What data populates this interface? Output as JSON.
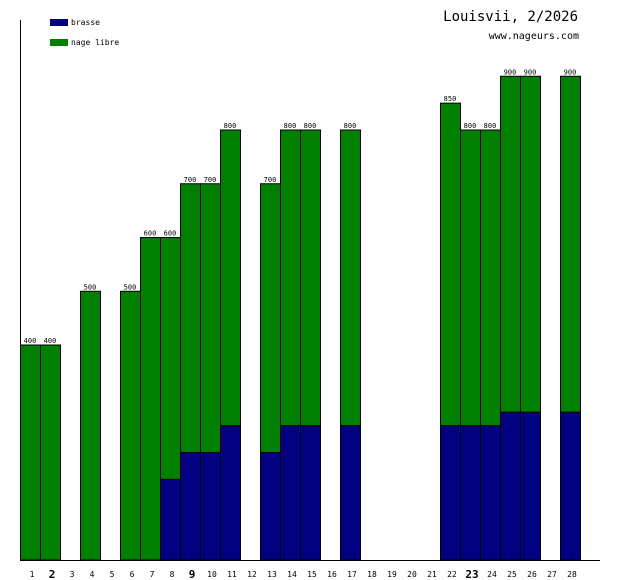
{
  "chart_data": {
    "type": "bar",
    "stacked": true,
    "title": "Louisvii, 2/2026",
    "subtitle": "www.nageurs.com",
    "xlabel": "",
    "ylabel": "",
    "ylim": [
      0,
      1000
    ],
    "legend_placement": "top-left",
    "categories": [
      "1",
      "2",
      "3",
      "4",
      "5",
      "6",
      "7",
      "8",
      "9",
      "10",
      "11",
      "12",
      "13",
      "14",
      "15",
      "16",
      "17",
      "18",
      "19",
      "20",
      "21",
      "22",
      "23",
      "24",
      "25",
      "26",
      "27",
      "28"
    ],
    "bold_categories": [
      "2",
      "9",
      "23"
    ],
    "series": [
      {
        "name": "brasse",
        "color": "#000080",
        "values": [
          0,
          0,
          0,
          0,
          0,
          0,
          0,
          150,
          200,
          200,
          250,
          0,
          200,
          250,
          250,
          0,
          250,
          0,
          0,
          0,
          0,
          250,
          250,
          250,
          275,
          275,
          0,
          275
        ]
      },
      {
        "name": "nage libre",
        "color": "#008000",
        "values": [
          400,
          400,
          0,
          500,
          0,
          500,
          600,
          450,
          500,
          500,
          550,
          0,
          500,
          550,
          550,
          0,
          550,
          0,
          0,
          0,
          0,
          600,
          550,
          550,
          625,
          625,
          0,
          625
        ]
      }
    ],
    "totals": [
      400,
      400,
      0,
      500,
      0,
      500,
      600,
      600,
      700,
      700,
      800,
      0,
      700,
      800,
      800,
      0,
      800,
      0,
      0,
      0,
      0,
      850,
      800,
      800,
      900,
      900,
      0,
      900
    ]
  }
}
